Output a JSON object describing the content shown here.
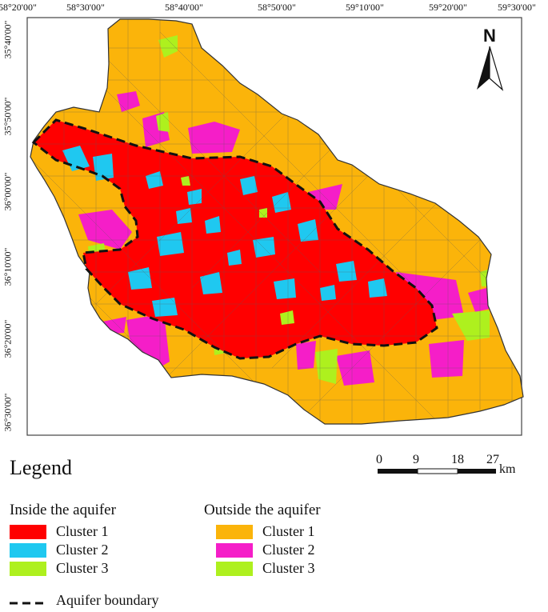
{
  "map": {
    "north_label": "N",
    "longitude_ticks": [
      "58°20'00\"",
      "58°30'00\"",
      "58°40'00\"",
      "58°50'00\"",
      "59°10'00\"",
      "59°20'00\"",
      "59°30'00\""
    ],
    "latitude_ticks": [
      "35°40'00\"",
      "35°50'00\"",
      "36°00'00\"",
      "36°10'00\"",
      "36°20'00\"",
      "36°30'00\""
    ]
  },
  "scale": {
    "ticks": [
      "0",
      "9",
      "18",
      "27"
    ],
    "unit": "km"
  },
  "legend": {
    "title": "Legend",
    "inside_heading": "Inside the aquifer",
    "outside_heading": "Outside the aquifer",
    "inside": [
      {
        "label": "Cluster 1",
        "color": "#ff0000"
      },
      {
        "label": "Cluster 2",
        "color": "#1fc8f0"
      },
      {
        "label": "Cluster 3",
        "color": "#aef01e"
      }
    ],
    "outside": [
      {
        "label": "Cluster 1",
        "color": "#fbb40a"
      },
      {
        "label": "Cluster 2",
        "color": "#f51ec8"
      },
      {
        "label": "Cluster 3",
        "color": "#aef01e"
      }
    ],
    "boundary_label": "Aquifer boundary"
  }
}
